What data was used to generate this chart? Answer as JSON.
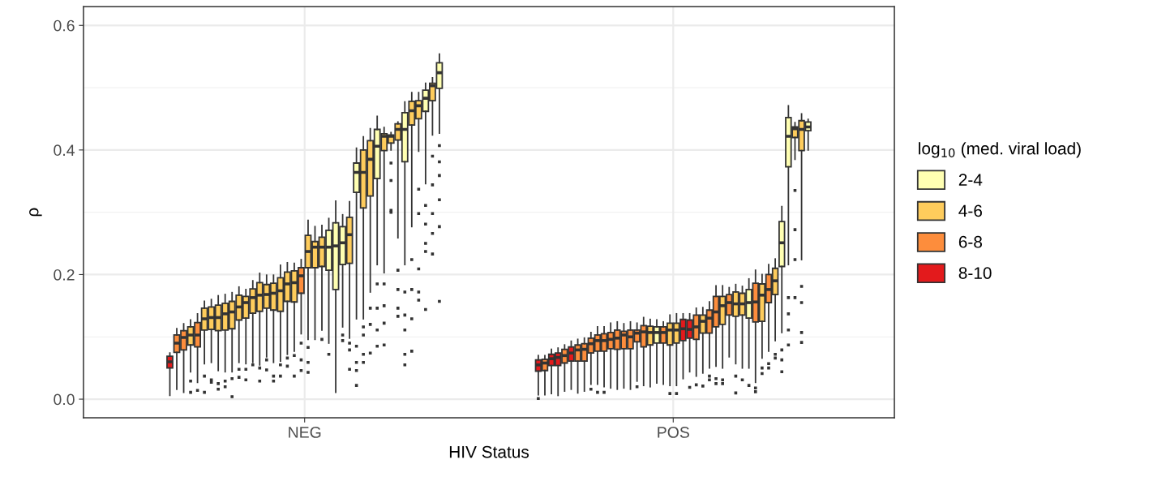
{
  "chart_data": {
    "type": "box",
    "xlabel": "HIV Status",
    "ylabel": "ρ",
    "legend_title": "log$_{10}$ (med. viral load)",
    "legend": "right",
    "grid": true,
    "categories": [
      "NEG",
      "POS"
    ],
    "ylim": [
      -0.03,
      0.63
    ],
    "yticks": [
      {
        "value": 0,
        "label": "0.0"
      },
      {
        "value": 0.2,
        "label": "0.2"
      },
      {
        "value": 0.4,
        "label": "0.4"
      },
      {
        "value": 0.6,
        "label": "0.6"
      }
    ],
    "series": [
      {
        "colors": [
          "#e31a1c",
          "#e31a1c"
        ],
        "boxes": [
          {
            "low": 0.006,
            "q1": 0.05,
            "median": 0.06,
            "q3": 0.069,
            "high": 0.074
          },
          {
            "low": 0.007,
            "q1": 0.045,
            "median": 0.055,
            "q3": 0.063,
            "high": 0.07,
            "outliers": [
              0.001
            ]
          }
        ]
      },
      {
        "colors": [
          "#fd8d3c",
          "#fd8d3c"
        ],
        "boxes": [
          {
            "low": 0.016,
            "q1": 0.075,
            "median": 0.09,
            "q3": 0.103,
            "high": 0.113
          },
          {
            "low": 0.007,
            "q1": 0.046,
            "median": 0.058,
            "q3": 0.064,
            "high": 0.07
          }
        ]
      },
      {
        "colors": [
          "#fd8d3c",
          "#e31a1c"
        ],
        "boxes": [
          {
            "low": 0.011,
            "q1": 0.079,
            "median": 0.099,
            "q3": 0.11,
            "high": 0.121
          },
          {
            "low": 0.009,
            "q1": 0.054,
            "median": 0.065,
            "q3": 0.072,
            "high": 0.08
          }
        ]
      },
      {
        "colors": [
          "#fecc5c",
          "#e31a1c"
        ],
        "boxes": [
          {
            "low": 0.044,
            "q1": 0.087,
            "median": 0.103,
            "q3": 0.116,
            "high": 0.127,
            "outliers": [
              0.029,
              0.011
            ]
          },
          {
            "low": 0.006,
            "q1": 0.054,
            "median": 0.067,
            "q3": 0.074,
            "high": 0.082
          }
        ]
      },
      {
        "colors": [
          "#fd8d3c",
          "#fd8d3c"
        ],
        "boxes": [
          {
            "low": 0.027,
            "q1": 0.084,
            "median": 0.103,
            "q3": 0.123,
            "high": 0.137,
            "outliers": [
              0.014
            ]
          },
          {
            "low": 0.013,
            "q1": 0.058,
            "median": 0.07,
            "q3": 0.08,
            "high": 0.087
          }
        ]
      },
      {
        "colors": [
          "#fecc5c",
          "#e31a1c"
        ],
        "boxes": [
          {
            "low": 0.057,
            "q1": 0.111,
            "median": 0.129,
            "q3": 0.146,
            "high": 0.157,
            "outliers": [
              0.037,
              0.011
            ]
          },
          {
            "low": 0.016,
            "q1": 0.061,
            "median": 0.074,
            "q3": 0.084,
            "high": 0.093
          }
        ]
      },
      {
        "colors": [
          "#fecc5c",
          "#fd8d3c"
        ],
        "boxes": [
          {
            "low": 0.059,
            "q1": 0.112,
            "median": 0.131,
            "q3": 0.148,
            "high": 0.16,
            "outliers": [
              0.031,
              0.027
            ]
          },
          {
            "low": 0.01,
            "q1": 0.061,
            "median": 0.079,
            "q3": 0.087,
            "high": 0.096
          }
        ]
      },
      {
        "colors": [
          "#fecc5c",
          "#fd8d3c"
        ],
        "boxes": [
          {
            "low": 0.046,
            "q1": 0.11,
            "median": 0.131,
            "q3": 0.151,
            "high": 0.166,
            "outliers": [
              0.025,
              0.016
            ]
          },
          {
            "low": 0.013,
            "q1": 0.061,
            "median": 0.08,
            "q3": 0.089,
            "high": 0.098
          }
        ]
      },
      {
        "colors": [
          "#fecc5c",
          "#fd8d3c"
        ],
        "boxes": [
          {
            "low": 0.044,
            "q1": 0.111,
            "median": 0.137,
            "q3": 0.154,
            "high": 0.168,
            "outliers": [
              0.029,
              0.02
            ]
          },
          {
            "low": 0.024,
            "q1": 0.074,
            "median": 0.089,
            "q3": 0.098,
            "high": 0.107,
            "outliers": [
              0.016
            ]
          }
        ]
      },
      {
        "colors": [
          "#fecc5c",
          "#fd8d3c"
        ],
        "boxes": [
          {
            "low": 0.044,
            "q1": 0.113,
            "median": 0.14,
            "q3": 0.157,
            "high": 0.171,
            "outliers": [
              0.033,
              0.004
            ]
          },
          {
            "low": 0.024,
            "q1": 0.077,
            "median": 0.094,
            "q3": 0.103,
            "high": 0.116,
            "outliers": [
              0.011
            ]
          }
        ]
      },
      {
        "colors": [
          "#fecc5c",
          "#fd8d3c"
        ],
        "boxes": [
          {
            "low": 0.059,
            "q1": 0.127,
            "median": 0.148,
            "q3": 0.167,
            "high": 0.18,
            "outliers": [
              0.048,
              0.035
            ]
          },
          {
            "low": 0.02,
            "q1": 0.077,
            "median": 0.094,
            "q3": 0.105,
            "high": 0.116,
            "outliers": [
              0.011
            ]
          }
        ]
      },
      {
        "colors": [
          "#fecc5c",
          "#fd8d3c"
        ],
        "boxes": [
          {
            "low": 0.057,
            "q1": 0.13,
            "median": 0.155,
            "q3": 0.165,
            "high": 0.176,
            "outliers": [
              0.048,
              0.031
            ]
          },
          {
            "low": 0.018,
            "q1": 0.081,
            "median": 0.096,
            "q3": 0.107,
            "high": 0.122
          }
        ]
      },
      {
        "colors": [
          "#fecc5c",
          "#fd8d3c"
        ],
        "boxes": [
          {
            "low": 0.059,
            "q1": 0.138,
            "median": 0.163,
            "q3": 0.177,
            "high": 0.19,
            "outliers": [
              0.055
            ]
          },
          {
            "low": 0.016,
            "q1": 0.08,
            "median": 0.098,
            "q3": 0.111,
            "high": 0.124
          }
        ]
      },
      {
        "colors": [
          "#fecc5c",
          "#fd8d3c"
        ],
        "boxes": [
          {
            "low": 0.055,
            "q1": 0.141,
            "median": 0.167,
            "q3": 0.187,
            "high": 0.202,
            "outliers": [
              0.05,
              0.029
            ]
          },
          {
            "low": 0.018,
            "q1": 0.081,
            "median": 0.103,
            "q3": 0.109,
            "high": 0.121
          }
        ]
      },
      {
        "colors": [
          "#fecc5c",
          "#fd8d3c"
        ],
        "boxes": [
          {
            "low": 0.068,
            "q1": 0.146,
            "median": 0.168,
            "q3": 0.184,
            "high": 0.199,
            "outliers": [
              0.063,
              0.047
            ]
          },
          {
            "low": 0.016,
            "q1": 0.081,
            "median": 0.1,
            "q3": 0.111,
            "high": 0.124
          }
        ]
      },
      {
        "colors": [
          "#fecc5c",
          "#fd8d3c"
        ],
        "boxes": [
          {
            "low": 0.059,
            "q1": 0.143,
            "median": 0.17,
            "q3": 0.186,
            "high": 0.199,
            "outliers": [
              0.037,
              0.029
            ]
          },
          {
            "low": 0.029,
            "q1": 0.092,
            "median": 0.106,
            "q3": 0.111,
            "high": 0.122,
            "outliers": [
              0.02
            ]
          }
        ]
      },
      {
        "colors": [
          "#fecc5c",
          "#fd8d3c"
        ],
        "boxes": [
          {
            "low": 0.061,
            "q1": 0.141,
            "median": 0.174,
            "q3": 0.195,
            "high": 0.215,
            "outliers": [
              0.055,
              0.037
            ]
          },
          {
            "low": 0.022,
            "q1": 0.084,
            "median": 0.108,
            "q3": 0.118,
            "high": 0.131
          }
        ]
      },
      {
        "colors": [
          "#fecc5c",
          "#fecc5c"
        ],
        "boxes": [
          {
            "low": 0.072,
            "q1": 0.157,
            "median": 0.185,
            "q3": 0.204,
            "high": 0.219,
            "outliers": [
              0.066,
              0.053
            ]
          },
          {
            "low": 0.02,
            "q1": 0.087,
            "median": 0.107,
            "q3": 0.117,
            "high": 0.128
          }
        ]
      },
      {
        "colors": [
          "#fecc5c",
          "#ffffb2"
        ],
        "boxes": [
          {
            "low": 0.077,
            "q1": 0.156,
            "median": 0.187,
            "q3": 0.206,
            "high": 0.218,
            "outliers": [
              0.07,
              0.037
            ]
          },
          {
            "low": 0.026,
            "q1": 0.09,
            "median": 0.107,
            "q3": 0.116,
            "high": 0.127
          }
        ]
      },
      {
        "colors": [
          "#fd8d3c",
          "#fd8d3c"
        ],
        "boxes": [
          {
            "low": 0.105,
            "q1": 0.17,
            "median": 0.198,
            "q3": 0.211,
            "high": 0.224,
            "outliers": [
              0.09,
              0.063,
              0.046
            ]
          },
          {
            "low": 0.024,
            "q1": 0.09,
            "median": 0.107,
            "q3": 0.116,
            "high": 0.124
          }
        ]
      },
      {
        "colors": [
          "#fecc5c",
          "#fecc5c"
        ],
        "boxes": [
          {
            "low": 0.096,
            "q1": 0.211,
            "median": 0.237,
            "q3": 0.263,
            "high": 0.287,
            "outliers": [
              0.083,
              0.059,
              0.043
            ]
          },
          {
            "low": 0.022,
            "q1": 0.087,
            "median": 0.111,
            "q3": 0.122,
            "high": 0.135,
            "outliers": [
              0.009
            ]
          }
        ]
      },
      {
        "colors": [
          "#fecc5c",
          "#fecc5c"
        ],
        "boxes": [
          {
            "low": 0.096,
            "q1": 0.211,
            "median": 0.244,
            "q3": 0.253,
            "high": 0.277
          },
          {
            "low": 0.022,
            "q1": 0.09,
            "median": 0.111,
            "q3": 0.122,
            "high": 0.137,
            "outliers": [
              0.009
            ]
          }
        ]
      },
      {
        "colors": [
          "#fecc5c",
          "#e31a1c"
        ],
        "boxes": [
          {
            "low": 0.111,
            "q1": 0.213,
            "median": 0.244,
            "q3": 0.26,
            "high": 0.279,
            "outliers": [
              0.096
            ]
          },
          {
            "low": 0.033,
            "q1": 0.094,
            "median": 0.113,
            "q3": 0.128,
            "high": 0.137
          }
        ]
      },
      {
        "colors": [
          "#ffffb2",
          "#e31a1c"
        ],
        "boxes": [
          {
            "low": 0.09,
            "q1": 0.207,
            "median": 0.244,
            "q3": 0.271,
            "high": 0.29,
            "outliers": [
              0.072
            ]
          },
          {
            "low": 0.044,
            "q1": 0.098,
            "median": 0.112,
            "q3": 0.127,
            "high": 0.137,
            "outliers": [
              0.019
            ]
          }
        ]
      },
      {
        "colors": [
          "#ffffb2",
          "#fd8d3c"
        ],
        "boxes": [
          {
            "low": 0.011,
            "q1": 0.176,
            "median": 0.246,
            "q3": 0.283,
            "high": 0.318
          },
          {
            "low": 0.037,
            "q1": 0.096,
            "median": 0.116,
            "q3": 0.135,
            "high": 0.146,
            "outliers": [
              0.023
            ]
          }
        ]
      },
      {
        "colors": [
          "#ffffb2",
          "#fecc5c"
        ],
        "boxes": [
          {
            "low": 0.116,
            "q1": 0.216,
            "median": 0.251,
            "q3": 0.277,
            "high": 0.296,
            "outliers": [
              0.103,
              0.094
            ]
          },
          {
            "low": 0.042,
            "q1": 0.106,
            "median": 0.125,
            "q3": 0.135,
            "high": 0.147,
            "outliers": [
              0.021
            ]
          }
        ]
      },
      {
        "colors": [
          "#fecc5c",
          "#fd8d3c"
        ],
        "boxes": [
          {
            "low": 0.098,
            "q1": 0.218,
            "median": 0.264,
            "q3": 0.292,
            "high": 0.317,
            "outliers": [
              0.09,
              0.079,
              0.048
            ]
          },
          {
            "low": 0.05,
            "q1": 0.106,
            "median": 0.13,
            "q3": 0.143,
            "high": 0.156,
            "outliers": [
              0.037,
              0.031
            ]
          }
        ]
      },
      {
        "colors": [
          "#ffffb2",
          "#fd8d3c"
        ],
        "boxes": [
          {
            "low": 0.129,
            "q1": 0.332,
            "median": 0.364,
            "q3": 0.379,
            "high": 0.403,
            "outliers": [
              0.085,
              0.059,
              0.046,
              0.022
            ]
          },
          {
            "low": 0.053,
            "q1": 0.116,
            "median": 0.14,
            "q3": 0.165,
            "high": 0.182,
            "outliers": [
              0.033,
              0.025
            ]
          }
        ]
      },
      {
        "colors": [
          "#fecc5c",
          "#fecc5c"
        ],
        "boxes": [
          {
            "low": 0.129,
            "q1": 0.307,
            "median": 0.364,
            "q3": 0.4,
            "high": 0.421,
            "outliers": [
              0.116,
              0.103,
              0.072,
              0.059
            ]
          },
          {
            "low": 0.05,
            "q1": 0.12,
            "median": 0.15,
            "q3": 0.165,
            "high": 0.182,
            "outliers": [
              0.031,
              0.025
            ]
          }
        ]
      },
      {
        "colors": [
          "#fecc5c",
          "#fd8d3c"
        ],
        "boxes": [
          {
            "low": 0.172,
            "q1": 0.326,
            "median": 0.385,
            "q3": 0.415,
            "high": 0.434,
            "outliers": [
              0.146,
              0.12,
              0.074
            ]
          },
          {
            "low": 0.068,
            "q1": 0.135,
            "median": 0.155,
            "q3": 0.168,
            "high": 0.179
          }
        ]
      },
      {
        "colors": [
          "#ffffb2",
          "#fecc5c"
        ],
        "boxes": [
          {
            "low": 0.216,
            "q1": 0.354,
            "median": 0.406,
            "q3": 0.433,
            "high": 0.454,
            "outliers": [
              0.185,
              0.146,
              0.111,
              0.085
            ]
          },
          {
            "low": 0.057,
            "q1": 0.133,
            "median": 0.153,
            "q3": 0.172,
            "high": 0.184,
            "outliers": [
              0.037,
              0.01
            ]
          }
        ]
      },
      {
        "colors": [
          "#fecc5c",
          "#fecc5c"
        ],
        "boxes": [
          {
            "low": 0.203,
            "q1": 0.399,
            "median": 0.422,
            "q3": 0.426,
            "high": 0.436,
            "outliers": [
              0.185,
              0.15,
              0.122,
              0.087
            ]
          },
          {
            "low": 0.05,
            "q1": 0.135,
            "median": 0.153,
            "q3": 0.17,
            "high": 0.181,
            "outliers": [
              0.031
            ]
          }
        ]
      },
      {
        "colors": [
          "#fecc5c",
          "#ffffb2"
        ],
        "boxes": [
          {
            "low": 0.4,
            "q1": 0.411,
            "median": 0.422,
            "q3": 0.424,
            "high": 0.428,
            "outliers": [
              0.379,
              0.351,
              0.303,
              0.3
            ]
          },
          {
            "low": 0.05,
            "q1": 0.13,
            "median": 0.155,
            "q3": 0.176,
            "high": 0.193,
            "outliers": [
              0.022
            ]
          }
        ]
      },
      {
        "colors": [
          "#fecc5c",
          "#fd8d3c"
        ],
        "boxes": [
          {
            "low": 0.259,
            "q1": 0.416,
            "median": 0.433,
            "q3": 0.442,
            "high": 0.445,
            "outliers": [
              0.207,
              0.176,
              0.146,
              0.133
            ]
          },
          {
            "low": 0.027,
            "q1": 0.124,
            "median": 0.156,
            "q3": 0.186,
            "high": 0.207,
            "outliers": [
              0.018,
              0.012
            ]
          }
        ]
      },
      {
        "colors": [
          "#ffffb2",
          "#fecc5c"
        ],
        "boxes": [
          {
            "low": 0.216,
            "q1": 0.381,
            "median": 0.433,
            "q3": 0.46,
            "high": 0.477,
            "outliers": [
              0.172,
              0.135,
              0.111,
              0.072,
              0.055
            ]
          },
          {
            "low": 0.066,
            "q1": 0.125,
            "median": 0.167,
            "q3": 0.185,
            "high": 0.2,
            "outliers": [
              0.05,
              0.041
            ]
          }
        ]
      },
      {
        "colors": [
          "#fecc5c",
          "#fd8d3c"
        ],
        "boxes": [
          {
            "low": 0.277,
            "q1": 0.44,
            "median": 0.463,
            "q3": 0.478,
            "high": 0.492,
            "outliers": [
              0.224,
              0.176,
              0.129,
              0.077
            ]
          },
          {
            "low": 0.077,
            "q1": 0.155,
            "median": 0.176,
            "q3": 0.2,
            "high": 0.216,
            "outliers": [
              0.057,
              0.05
            ]
          }
        ]
      },
      {
        "colors": [
          "#fecc5c",
          "#fecc5c"
        ],
        "boxes": [
          {
            "low": 0.398,
            "q1": 0.45,
            "median": 0.471,
            "q3": 0.479,
            "high": 0.492,
            "outliers": [
              0.337,
              0.298,
              0.209,
              0.172,
              0.159
            ]
          },
          {
            "low": 0.094,
            "q1": 0.168,
            "median": 0.19,
            "q3": 0.21,
            "high": 0.225,
            "outliers": [
              0.072,
              0.066
            ]
          }
        ]
      },
      {
        "colors": [
          "#ffffb2",
          "#ffffb2"
        ],
        "boxes": [
          {
            "low": 0.346,
            "q1": 0.462,
            "median": 0.483,
            "q3": 0.496,
            "high": 0.507,
            "outliers": [
              0.311,
              0.281,
              0.25,
              0.237,
              0.144
            ]
          },
          {
            "low": 0.107,
            "q1": 0.213,
            "median": 0.251,
            "q3": 0.285,
            "high": 0.309,
            "outliers": [
              0.079,
              0.063,
              0.044
            ]
          }
        ]
      },
      {
        "colors": [
          "#fecc5c",
          "#ffffb2"
        ],
        "boxes": [
          {
            "low": 0.424,
            "q1": 0.479,
            "median": 0.503,
            "q3": 0.507,
            "high": 0.516,
            "outliers": [
              0.39,
              0.344,
              0.298,
              0.266,
              0.233
            ]
          },
          {
            "low": 0.216,
            "q1": 0.373,
            "median": 0.422,
            "q3": 0.452,
            "high": 0.471,
            "outliers": [
              0.163,
              0.137,
              0.111,
              0.087
            ]
          }
        ]
      },
      {
        "colors": [
          "#ffffb2",
          "#fecc5c"
        ],
        "boxes": [
          {
            "low": 0.427,
            "q1": 0.499,
            "median": 0.524,
            "q3": 0.54,
            "high": 0.554,
            "outliers": [
              0.407,
              0.381,
              0.359,
              0.32,
              0.277,
              0.157
            ]
          },
          {
            "low": 0.385,
            "q1": 0.42,
            "median": 0.434,
            "q3": 0.437,
            "high": 0.444,
            "outliers": [
              0.335,
              0.272,
              0.224,
              0.163
            ]
          }
        ]
      },
      {
        "colors": [
          null,
          "#fecc5c"
        ],
        "boxes": [
          null,
          {
            "low": 0.224,
            "q1": 0.399,
            "median": 0.433,
            "q3": 0.447,
            "high": 0.458,
            "outliers": [
              0.181,
              0.155,
              0.107,
              0.091
            ]
          }
        ]
      },
      {
        "colors": [
          null,
          "#ffffb2"
        ],
        "boxes": [
          null,
          {
            "low": 0.4,
            "q1": 0.431,
            "median": 0.437,
            "q3": 0.445,
            "high": 0.449
          }
        ]
      },
      {
        "name": "2-4",
        "color": "#ffffb2",
        "boxes": [
          null,
          null
        ]
      },
      {
        "name": "4-6",
        "color": "#fecc5c",
        "boxes": [
          null,
          null
        ]
      },
      {
        "name": "6-8",
        "color": "#fd8d3c",
        "boxes": [
          null,
          null
        ]
      },
      {
        "name": "8-10",
        "color": "#e31a1c",
        "boxes": [
          null,
          null
        ]
      }
    ]
  }
}
